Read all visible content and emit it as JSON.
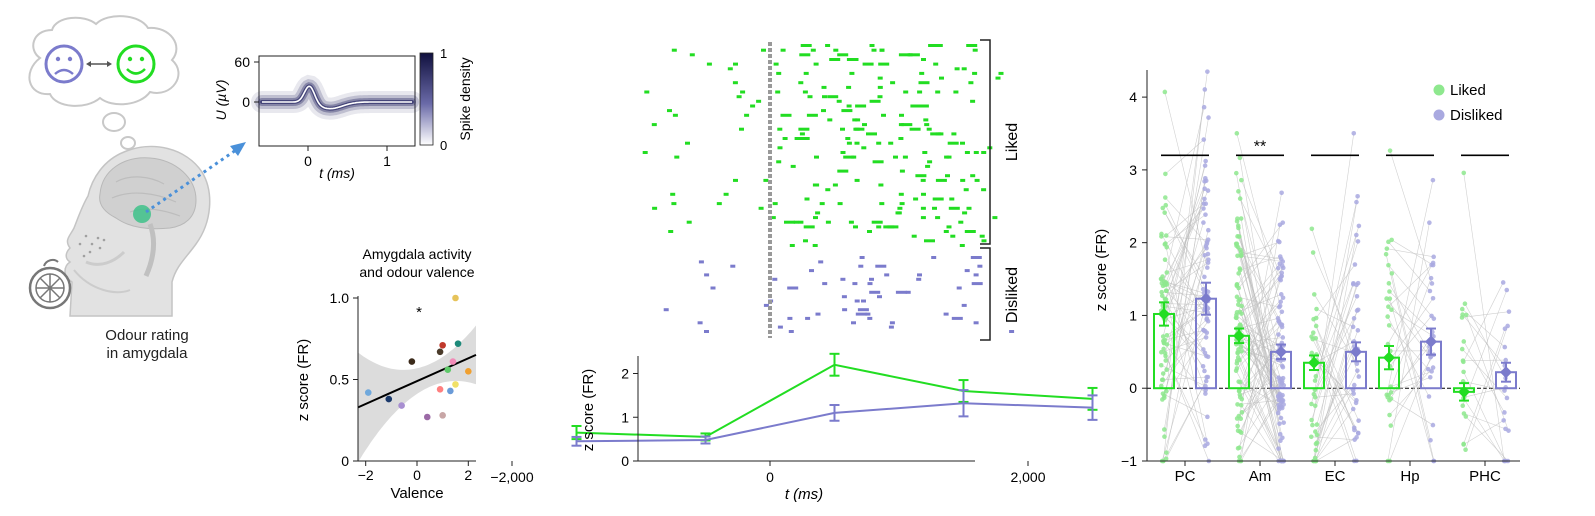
{
  "colors": {
    "liked": "#22dd22",
    "disliked": "#7b7bcc",
    "liked_light": "#8ee88e",
    "disliked_light": "#a9a9e0",
    "waveform": "#1c1c5c",
    "stim_line": "#999999",
    "regression_band": "#d9d9d9"
  },
  "icons": [
    "thought-bubble-icon",
    "sad-face-icon",
    "happy-face-icon",
    "bidirectional-arrow-icon",
    "head-brain-illustration",
    "orange-icon",
    "dotted-arrow-icon"
  ],
  "panel_a": {
    "caption_line1": "Odour rating",
    "caption_line2": "in amygdala"
  },
  "waveform": {
    "y_label": "U (µV)",
    "x_label": "t (ms)",
    "y_ticks": [
      "60",
      "0"
    ],
    "x_ticks": [
      "0",
      "1"
    ],
    "colorbar_label": "Spike density",
    "colorbar_ticks": [
      "1",
      "0"
    ]
  },
  "raster": {
    "group_liked_label": "Liked",
    "group_disliked_label": "Disliked",
    "liked_trials": 44,
    "disliked_trials": 18,
    "stimulus_onset_ms": 0,
    "x_range_ms": [
      -1500,
      3000
    ]
  },
  "chart_data": [
    {
      "type": "scatter",
      "title_line1": "Amygdala activity",
      "title_line2": "and odour valence",
      "xlabel": "Valence",
      "ylabel": "z score (FR)",
      "xlim": [
        -2.3,
        2.3
      ],
      "ylim": [
        0,
        1.0
      ],
      "x_ticks": [
        "−2",
        "0",
        "2"
      ],
      "y_ticks": [
        "0",
        "0.5",
        "1.0"
      ],
      "annotation": "*",
      "regression": {
        "x": [
          -2,
          2
        ],
        "y": [
          0.35,
          0.63
        ]
      },
      "points": [
        {
          "x": -1.9,
          "y": 0.42,
          "color": "#6fa8dc"
        },
        {
          "x": -1.1,
          "y": 0.38,
          "color": "#1b3a6b"
        },
        {
          "x": -0.6,
          "y": 0.34,
          "color": "#a88fd1"
        },
        {
          "x": -0.2,
          "y": 0.61,
          "color": "#3b2a1a"
        },
        {
          "x": 0.4,
          "y": 0.27,
          "color": "#9b6aa6"
        },
        {
          "x": 0.9,
          "y": 0.67,
          "color": "#4a3b2a"
        },
        {
          "x": 1.0,
          "y": 0.71,
          "color": "#c0392b"
        },
        {
          "x": 0.9,
          "y": 0.44,
          "color": "#ff7f7f"
        },
        {
          "x": 1.0,
          "y": 0.28,
          "color": "#c8a6a6"
        },
        {
          "x": 1.2,
          "y": 0.56,
          "color": "#5fc96a"
        },
        {
          "x": 1.3,
          "y": 0.43,
          "color": "#6a9bd8"
        },
        {
          "x": 1.4,
          "y": 0.61,
          "color": "#f28bb8"
        },
        {
          "x": 1.5,
          "y": 0.47,
          "color": "#f0e068"
        },
        {
          "x": 1.5,
          "y": 1.0,
          "color": "#e6c35a"
        },
        {
          "x": 1.6,
          "y": 0.72,
          "color": "#1e8a7a"
        },
        {
          "x": 2.0,
          "y": 0.55,
          "color": "#f0a030"
        }
      ]
    },
    {
      "type": "line",
      "xlabel": "t (ms)",
      "ylabel": "z score (FR)",
      "xlim": [
        -2200,
        3000
      ],
      "ylim": [
        0,
        2.4
      ],
      "x_ticks": [
        "−2,000",
        "0",
        "2,000"
      ],
      "y_ticks": [
        "0",
        "1",
        "2"
      ],
      "x": [
        -1500,
        -500,
        500,
        1500,
        2500
      ],
      "series": [
        {
          "key": "liked",
          "values": [
            0.65,
            0.55,
            2.2,
            1.6,
            1.42
          ],
          "errors": [
            0.15,
            0.08,
            0.25,
            0.25,
            0.25
          ]
        },
        {
          "key": "disliked",
          "values": [
            0.45,
            0.48,
            1.1,
            1.32,
            1.22
          ],
          "errors": [
            0.1,
            0.08,
            0.18,
            0.3,
            0.28
          ]
        }
      ]
    },
    {
      "type": "bar",
      "ylabel": "z score (FR)",
      "ylim": [
        -1,
        4.4
      ],
      "y_ticks": [
        "−1",
        "0",
        "1",
        "2",
        "3",
        "4"
      ],
      "categories": [
        "PC",
        "Am",
        "EC",
        "Hp",
        "PHC"
      ],
      "significance": [
        "",
        "**",
        "",
        "",
        ""
      ],
      "significance_level": 3.2,
      "legend": {
        "position": "top-right",
        "items": [
          {
            "key": "liked",
            "label": "Liked"
          },
          {
            "key": "disliked",
            "label": "Disliked"
          }
        ]
      },
      "series": [
        {
          "key": "liked",
          "values": [
            1.02,
            0.72,
            0.35,
            0.42,
            -0.05
          ],
          "errors": [
            0.16,
            0.1,
            0.1,
            0.16,
            0.12
          ]
        },
        {
          "key": "disliked",
          "values": [
            1.23,
            0.5,
            0.5,
            0.64,
            0.22
          ],
          "errors": [
            0.22,
            0.1,
            0.13,
            0.18,
            0.13
          ]
        }
      ]
    }
  ]
}
